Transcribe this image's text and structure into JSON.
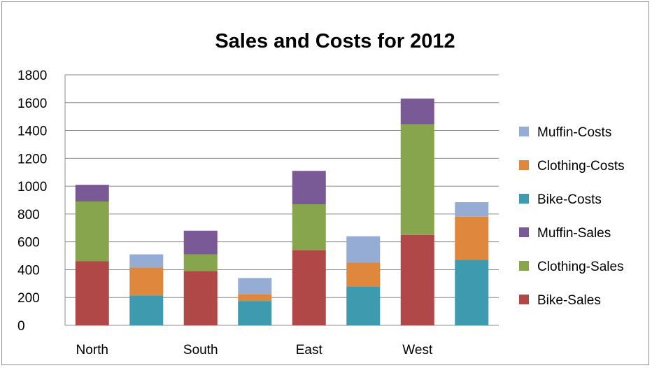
{
  "chart_data": {
    "type": "bar",
    "stacked": true,
    "title": "Sales and Costs for 2012",
    "regions": [
      "North",
      "South",
      "East",
      "West"
    ],
    "ylim": [
      0,
      1800
    ],
    "yticks": [
      0,
      200,
      400,
      600,
      800,
      1000,
      1200,
      1400,
      1600,
      1800
    ],
    "grid": true,
    "legend_position": "right",
    "groups": [
      {
        "kind": "sales",
        "series": [
          {
            "name": "Bike-Sales",
            "color": "#B04848",
            "values": [
              460,
              390,
              540,
              650
            ]
          },
          {
            "name": "Clothing-Sales",
            "color": "#87A54C",
            "values": [
              430,
              120,
              330,
              795
            ]
          },
          {
            "name": "Muffin-Sales",
            "color": "#7A5A96",
            "values": [
              120,
              170,
              240,
              185
            ]
          }
        ]
      },
      {
        "kind": "costs",
        "series": [
          {
            "name": "Bike-Costs",
            "color": "#3E9AAF",
            "values": [
              215,
              175,
              280,
              470
            ]
          },
          {
            "name": "Clothing-Costs",
            "color": "#E0873E",
            "values": [
              200,
              50,
              170,
              310
            ]
          },
          {
            "name": "Muffin-Costs",
            "color": "#95ADD5",
            "values": [
              95,
              115,
              190,
              105
            ]
          }
        ]
      }
    ],
    "legend_order": [
      "Muffin-Costs",
      "Clothing-Costs",
      "Bike-Costs",
      "Muffin-Sales",
      "Clothing-Sales",
      "Bike-Sales"
    ]
  }
}
